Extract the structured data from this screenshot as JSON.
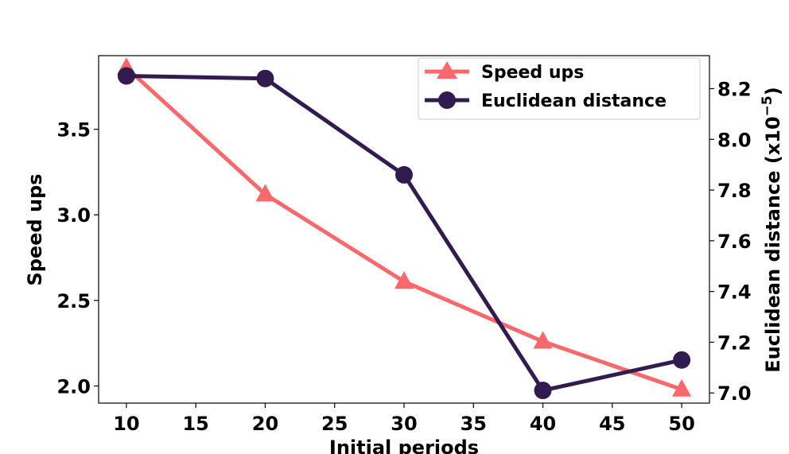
{
  "chart_data": {
    "type": "line",
    "x": [
      10,
      20,
      30,
      40,
      50
    ],
    "xlabel": "Initial periods",
    "x_ticks": [
      "10",
      "15",
      "20",
      "25",
      "30",
      "35",
      "40",
      "45",
      "50"
    ],
    "xlim": [
      8,
      52
    ],
    "ylabel_left": "Speed ups",
    "y_left_ticks": [
      "2.0",
      "2.5",
      "3.0",
      "3.5"
    ],
    "ylim_left": [
      1.9,
      3.93
    ],
    "ylabel_right": "Euclidean distance (x10",
    "ylabel_right_exponent": "−5",
    "ylabel_right_close": ")",
    "y_right_ticks": [
      "7.0",
      "7.2",
      "7.4",
      "7.6",
      "7.8",
      "8.0",
      "8.2"
    ],
    "ylim_right": [
      6.96,
      8.33
    ],
    "series": [
      {
        "name": "Speed ups",
        "axis": "left",
        "marker": "triangle",
        "color": "#f8696b",
        "values": [
          3.86,
          3.12,
          2.61,
          2.26,
          1.98
        ]
      },
      {
        "name": "Euclidean distance",
        "axis": "right",
        "marker": "circle",
        "color": "#321b4e",
        "values": [
          8.25,
          8.24,
          7.86,
          7.01,
          7.13
        ]
      }
    ],
    "legend": "top-right",
    "grid": false
  }
}
